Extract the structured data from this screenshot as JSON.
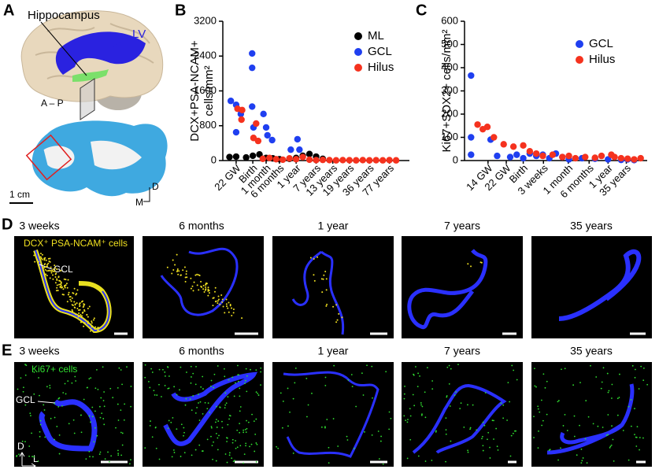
{
  "panel_labels": [
    "A",
    "B",
    "C",
    "D",
    "E"
  ],
  "anatomy": {
    "hippocampus": "Hippocampus",
    "lv": "LV",
    "axis": "A – P",
    "scale": "1 cm",
    "dorsal": "D",
    "medial": "M"
  },
  "row_d": {
    "titles": [
      "3 weeks",
      "6 months",
      "1 year",
      "7 years",
      "35 years"
    ],
    "cells_label": "DCX⁺ PSA-NCAM⁺ cells",
    "gcl": "GCL"
  },
  "row_e": {
    "titles": [
      "3 weeks",
      "6 months",
      "1 year",
      "7 years",
      "35 years"
    ],
    "cells_label": "Ki67+ cells",
    "gcl": "GCL",
    "dorsal": "D",
    "lateral": "L"
  },
  "chart_data": [
    {
      "type": "scatter",
      "ylabel": [
        "DCX+PSA-NCAM+",
        "cells/mm²"
      ],
      "xlim": [
        0,
        28
      ],
      "xticks": [
        {
          "value": 2,
          "label": "22 GW"
        },
        {
          "value": 4.5,
          "label": "Birth"
        },
        {
          "value": 6.5,
          "label": "1 month"
        },
        {
          "value": 8.5,
          "label": "6 months"
        },
        {
          "value": 11,
          "label": "1 year"
        },
        {
          "value": 14,
          "label": "7 years"
        },
        {
          "value": 16.5,
          "label": "13 years"
        },
        {
          "value": 19,
          "label": "19 years"
        },
        {
          "value": 22,
          "label": "36 years"
        },
        {
          "value": 25,
          "label": "77 years"
        }
      ],
      "ylim": [
        0,
        3200
      ],
      "yticks": [
        0,
        800,
        1600,
        2400,
        3200
      ],
      "legend": "upper right",
      "series": [
        {
          "name": "ML",
          "color": "#000000",
          "x": [
            1,
            2,
            3.5,
            4.5,
            5.5,
            6.5,
            7.5,
            8.5,
            10,
            11,
            12,
            13,
            14,
            15
          ],
          "values": [
            80,
            90,
            70,
            110,
            140,
            60,
            50,
            30,
            40,
            60,
            110,
            150,
            90,
            40
          ]
        },
        {
          "name": "GCL",
          "color": "#1f3ff0",
          "x": [
            1.2,
            2,
            2.7,
            2,
            4.4,
            4.4,
            4.4,
            4.6,
            6.1,
            6.5,
            6.7,
            7.4,
            10.2,
            11.2,
            11.5
          ],
          "values": [
            1370,
            1280,
            1070,
            650,
            2460,
            2130,
            1240,
            760,
            1070,
            760,
            580,
            470,
            250,
            490,
            250
          ]
        },
        {
          "name": "Hilus",
          "color": "#f5321e",
          "x": [
            2.2,
            2.9,
            2.8,
            5,
            4.6,
            5.3,
            6,
            7,
            8,
            9,
            10,
            11,
            12,
            13,
            14,
            15,
            16,
            17,
            18,
            19,
            20,
            21,
            22,
            23,
            24,
            25,
            26
          ],
          "values": [
            1190,
            1160,
            940,
            850,
            520,
            450,
            40,
            60,
            30,
            20,
            50,
            30,
            80,
            20,
            10,
            15,
            10,
            5,
            10,
            8,
            5,
            10,
            5,
            8,
            5,
            10,
            5
          ]
        }
      ]
    },
    {
      "type": "scatter",
      "ylabel": "Ki67+SOX2+ cells/mm²",
      "xlim": [
        0,
        28
      ],
      "xticks": [
        {
          "value": 3.6,
          "label": "14 GW"
        },
        {
          "value": 6.4,
          "label": "22 GW"
        },
        {
          "value": 9,
          "label": "Birth"
        },
        {
          "value": 12.1,
          "label": "3 weeks"
        },
        {
          "value": 15.9,
          "label": "1 month"
        },
        {
          "value": 19.1,
          "label": "6 months"
        },
        {
          "value": 22,
          "label": "1 year"
        },
        {
          "value": 24.8,
          "label": "35 years"
        }
      ],
      "ylim": [
        0,
        600
      ],
      "yticks": [
        0,
        100,
        200,
        300,
        400,
        500,
        600
      ],
      "legend": "upper right",
      "series": [
        {
          "name": "GCL",
          "color": "#1f3ff0",
          "x": [
            1,
            1,
            1,
            4,
            5,
            7,
            8,
            9,
            10,
            11,
            12,
            13,
            14,
            15,
            16,
            18,
            20,
            22,
            24,
            25,
            26
          ],
          "values": [
            366,
            100,
            25,
            90,
            20,
            15,
            25,
            10,
            30,
            20,
            25,
            10,
            30,
            15,
            5,
            10,
            8,
            5,
            3,
            5,
            2
          ]
        },
        {
          "name": "Hilus",
          "color": "#f5321e",
          "x": [
            2,
            2.8,
            3.5,
            4.5,
            6,
            7.5,
            9,
            10,
            11,
            12,
            13.5,
            15,
            16,
            17,
            18.5,
            20,
            21,
            22.5,
            23,
            24,
            25,
            26,
            27
          ],
          "values": [
            155,
            135,
            145,
            100,
            70,
            60,
            65,
            40,
            30,
            20,
            25,
            15,
            20,
            10,
            15,
            12,
            20,
            25,
            15,
            10,
            8,
            5,
            10
          ]
        }
      ]
    }
  ]
}
